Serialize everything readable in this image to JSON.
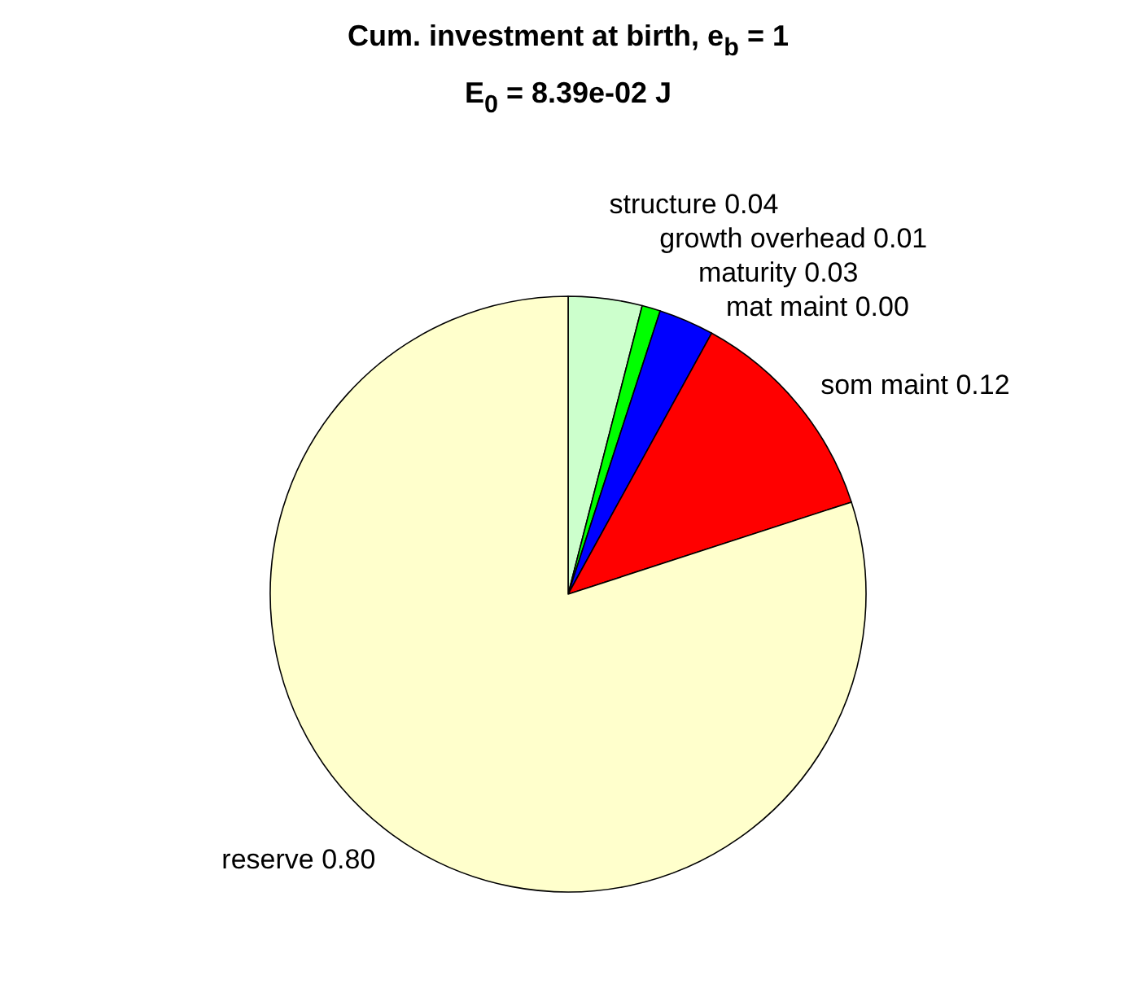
{
  "chart_data": {
    "type": "pie",
    "title": "Cum. investment at birth, e$_{b}$ = 1",
    "subtitle": "E$_{0}$ = 8.39e-02 J",
    "categories": [
      "structure",
      "growth overhead",
      "maturity",
      "mat maint",
      "som maint",
      "reserve"
    ],
    "values": [
      0.04,
      0.01,
      0.03,
      0.0,
      0.12,
      0.8
    ],
    "value_labels": [
      "0.04",
      "0.01",
      "0.03",
      "0.00",
      "0.12",
      "0.80"
    ],
    "colors": [
      "#ccffcc",
      "#00ff00",
      "#0000ff",
      null,
      "#ff0000",
      "#ffffcc"
    ]
  }
}
